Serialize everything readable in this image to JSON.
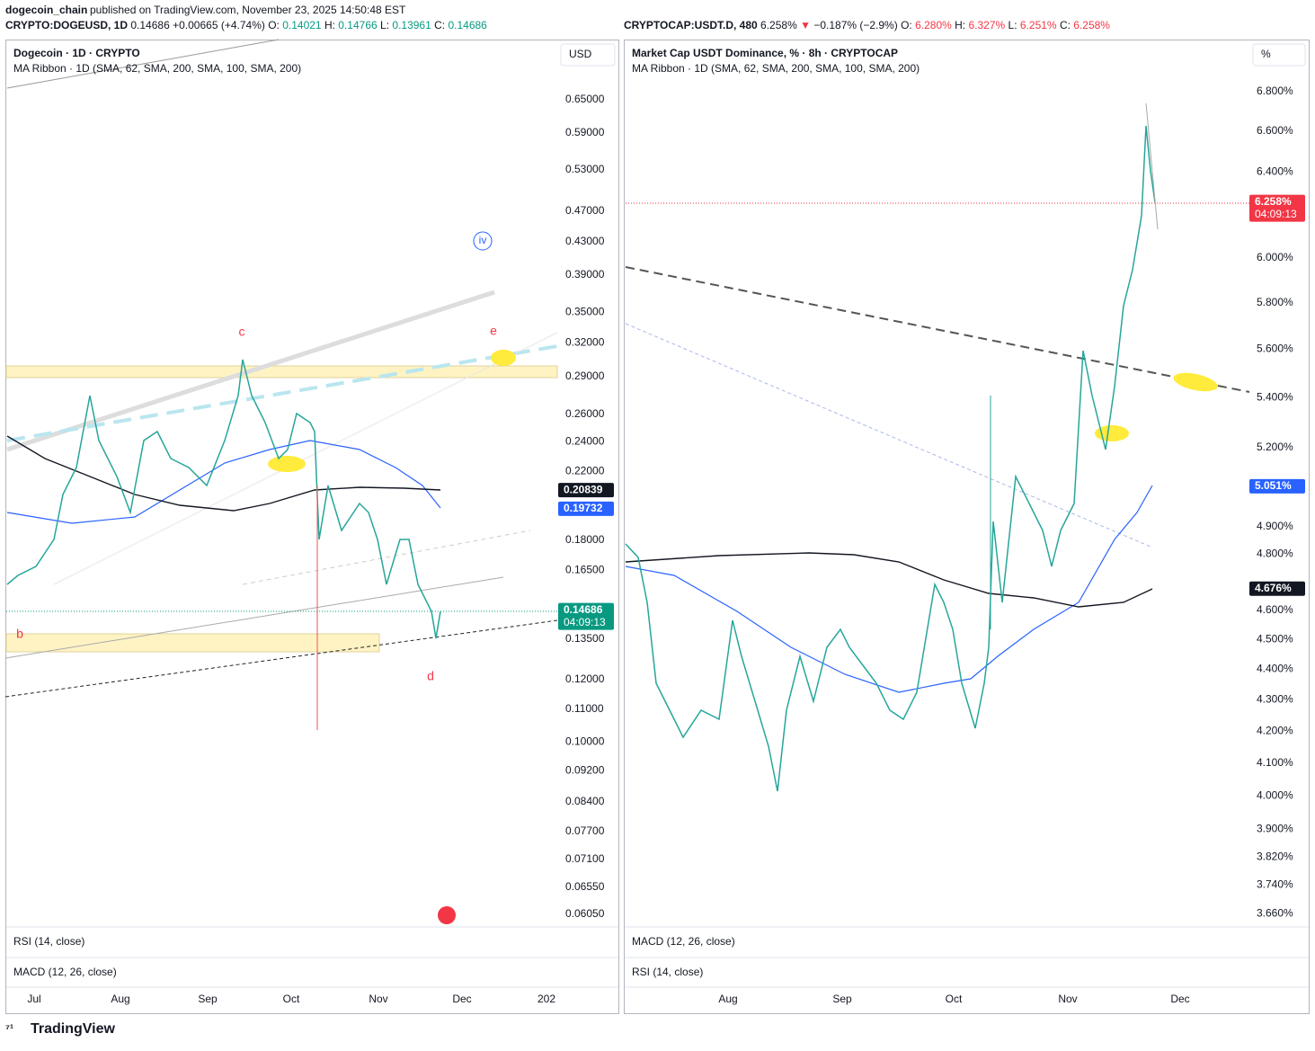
{
  "header": {
    "author": "dogecoin_chain",
    "published": "published on TradingView.com, November 23, 2025 14:50:48 EST"
  },
  "left": {
    "ticker": "CRYPTO:DOGEUSD, 1D",
    "last": "0.14686",
    "change": "+0.00665 (+4.74%)",
    "ohlc": [
      {
        "k": "O:",
        "v": "0.14021"
      },
      {
        "k": "H:",
        "v": "0.14766"
      },
      {
        "k": "L:",
        "v": "0.13961"
      },
      {
        "k": "C:",
        "v": "0.14686"
      }
    ],
    "title": "Dogecoin · 1D · CRYPTO",
    "indicator": "MA Ribbon · 1D (SMA, 62, SMA, 200, SMA, 100, SMA, 200)",
    "currency": "USD",
    "price_ticks": [
      {
        "value": 0.65,
        "label": "0.65000"
      },
      {
        "value": 0.59,
        "label": "0.59000"
      },
      {
        "value": 0.53,
        "label": "0.53000"
      },
      {
        "value": 0.47,
        "label": "0.47000"
      },
      {
        "value": 0.43,
        "label": "0.43000"
      },
      {
        "value": 0.39,
        "label": "0.39000"
      },
      {
        "value": 0.35,
        "label": "0.35000"
      },
      {
        "value": 0.32,
        "label": "0.32000"
      },
      {
        "value": 0.29,
        "label": "0.29000"
      },
      {
        "value": 0.26,
        "label": "0.26000"
      },
      {
        "value": 0.24,
        "label": "0.24000"
      },
      {
        "value": 0.22,
        "label": "0.22000"
      },
      {
        "value": 0.18,
        "label": "0.18000"
      },
      {
        "value": 0.165,
        "label": "0.16500"
      },
      {
        "value": 0.135,
        "label": "0.13500"
      },
      {
        "value": 0.12,
        "label": "0.12000"
      },
      {
        "value": 0.11,
        "label": "0.11000"
      },
      {
        "value": 0.1,
        "label": "0.10000"
      },
      {
        "value": 0.092,
        "label": "0.09200"
      },
      {
        "value": 0.084,
        "label": "0.08400"
      },
      {
        "value": 0.077,
        "label": "0.07700"
      },
      {
        "value": 0.071,
        "label": "0.07100"
      },
      {
        "value": 0.0655,
        "label": "0.06550"
      },
      {
        "value": 0.0605,
        "label": "0.06050"
      }
    ],
    "badges": [
      {
        "value": 0.20839,
        "label": "0.20839",
        "color": "#131722"
      },
      {
        "value": 0.19732,
        "label": "0.19732",
        "color": "#2962ff"
      },
      {
        "value": 0.14686,
        "label": "0.14686",
        "timer": "04:09:13",
        "color": "#089981"
      }
    ],
    "waves": [
      "iv",
      "c",
      "e",
      "b",
      "d"
    ],
    "panes": [
      "RSI (14, close)",
      "MACD (12, 26, close)"
    ],
    "time": [
      "Jul",
      "Aug",
      "Sep",
      "Oct",
      "Nov",
      "Dec",
      "202"
    ]
  },
  "right": {
    "ticker": "CRYPTOCAP:USDT.D, 480",
    "last": "6.258%",
    "arrow": "▼",
    "change": "−0.187% (−2.9%)",
    "ohlc": [
      {
        "k": "O:",
        "v": "6.280%"
      },
      {
        "k": "H:",
        "v": "6.327%"
      },
      {
        "k": "L:",
        "v": "6.251%"
      },
      {
        "k": "C:",
        "v": "6.258%"
      }
    ],
    "title": "Market Cap USDT Dominance, % · 8h · CRYPTOCAP",
    "indicator": "MA Ribbon · 1D (SMA, 62, SMA, 200, SMA, 100, SMA, 200)",
    "currency": "%",
    "price_ticks": [
      {
        "value": 6.8,
        "label": "6.800%"
      },
      {
        "value": 6.6,
        "label": "6.600%"
      },
      {
        "value": 6.4,
        "label": "6.400%"
      },
      {
        "value": 6.0,
        "label": "6.000%"
      },
      {
        "value": 5.8,
        "label": "5.800%"
      },
      {
        "value": 5.6,
        "label": "5.600%"
      },
      {
        "value": 5.4,
        "label": "5.400%"
      },
      {
        "value": 5.2,
        "label": "5.200%"
      },
      {
        "value": 4.9,
        "label": "4.900%"
      },
      {
        "value": 4.8,
        "label": "4.800%"
      },
      {
        "value": 4.6,
        "label": "4.600%"
      },
      {
        "value": 4.5,
        "label": "4.500%"
      },
      {
        "value": 4.4,
        "label": "4.400%"
      },
      {
        "value": 4.3,
        "label": "4.300%"
      },
      {
        "value": 4.2,
        "label": "4.200%"
      },
      {
        "value": 4.1,
        "label": "4.100%"
      },
      {
        "value": 4.0,
        "label": "4.000%"
      },
      {
        "value": 3.9,
        "label": "3.900%"
      },
      {
        "value": 3.82,
        "label": "3.820%"
      },
      {
        "value": 3.74,
        "label": "3.740%"
      },
      {
        "value": 3.66,
        "label": "3.660%"
      }
    ],
    "badges": [
      {
        "value": 6.258,
        "label": "6.258%",
        "timer": "04:09:13",
        "color": "#f23645"
      },
      {
        "value": 5.051,
        "label": "5.051%",
        "color": "#2962ff"
      },
      {
        "value": 4.676,
        "label": "4.676%",
        "color": "#131722"
      }
    ],
    "panes": [
      "MACD (12, 26, close)",
      "RSI (14, close)"
    ],
    "time": [
      "Aug",
      "Sep",
      "Oct",
      "Nov",
      "Dec"
    ]
  },
  "footer": {
    "brand": "TradingView"
  }
}
